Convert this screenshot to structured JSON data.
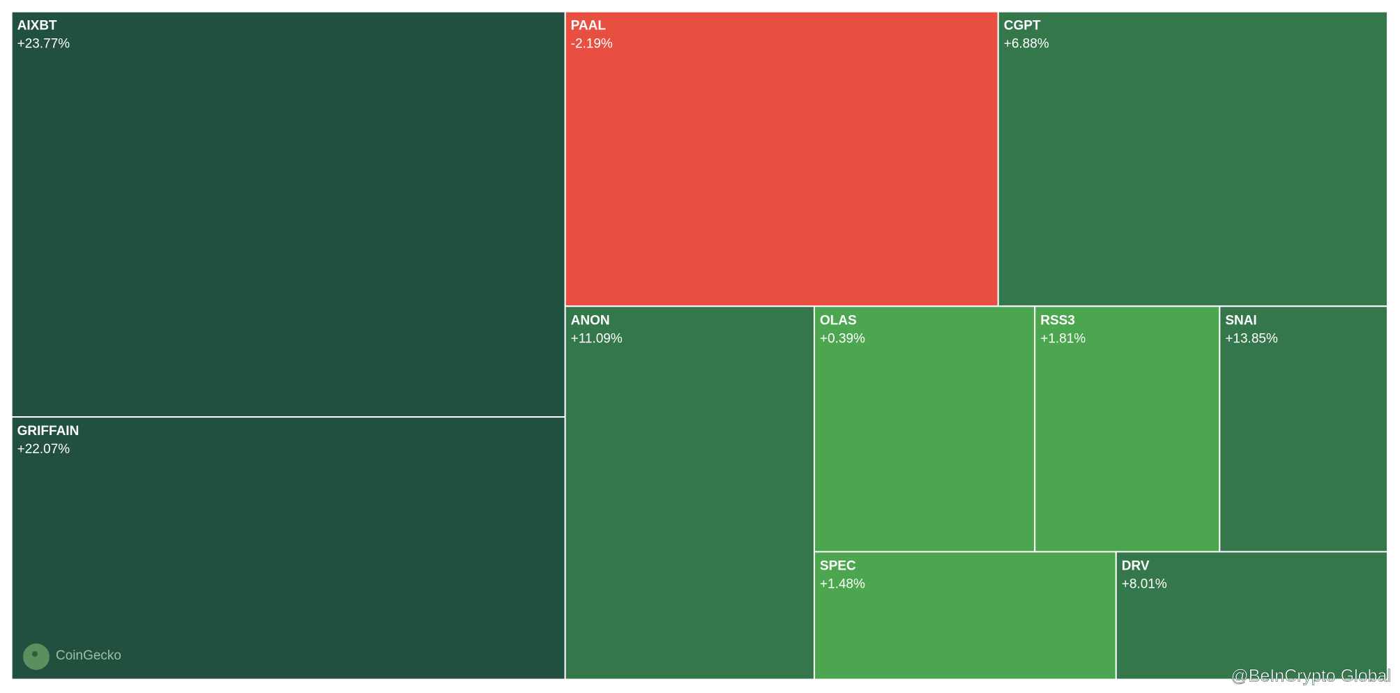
{
  "chart_data": {
    "type": "treemap",
    "categories": [
      "AIXBT",
      "GRIFFAIN",
      "PAAL",
      "CGPT",
      "ANON",
      "OLAS",
      "RSS3",
      "SNAI",
      "SPEC",
      "DRV"
    ],
    "values": [
      23.77,
      22.07,
      -2.19,
      6.88,
      11.09,
      0.39,
      1.81,
      13.85,
      1.48,
      8.01
    ],
    "value_labels": [
      "+23.77%",
      "+22.07%",
      "-2.19%",
      "+6.88%",
      "+11.09%",
      "+0.39%",
      "+1.81%",
      "+13.85%",
      "+1.48%",
      "+8.01%"
    ],
    "colors": [
      "#21503e",
      "#21503e",
      "#e94f40",
      "#33774b",
      "#33774b",
      "#4ba64f",
      "#4ba64f",
      "#33774b",
      "#4ba64f",
      "#33774b"
    ],
    "watermarks": {
      "source": "CoinGecko",
      "credit": "@BeInCrypto Global"
    }
  }
}
